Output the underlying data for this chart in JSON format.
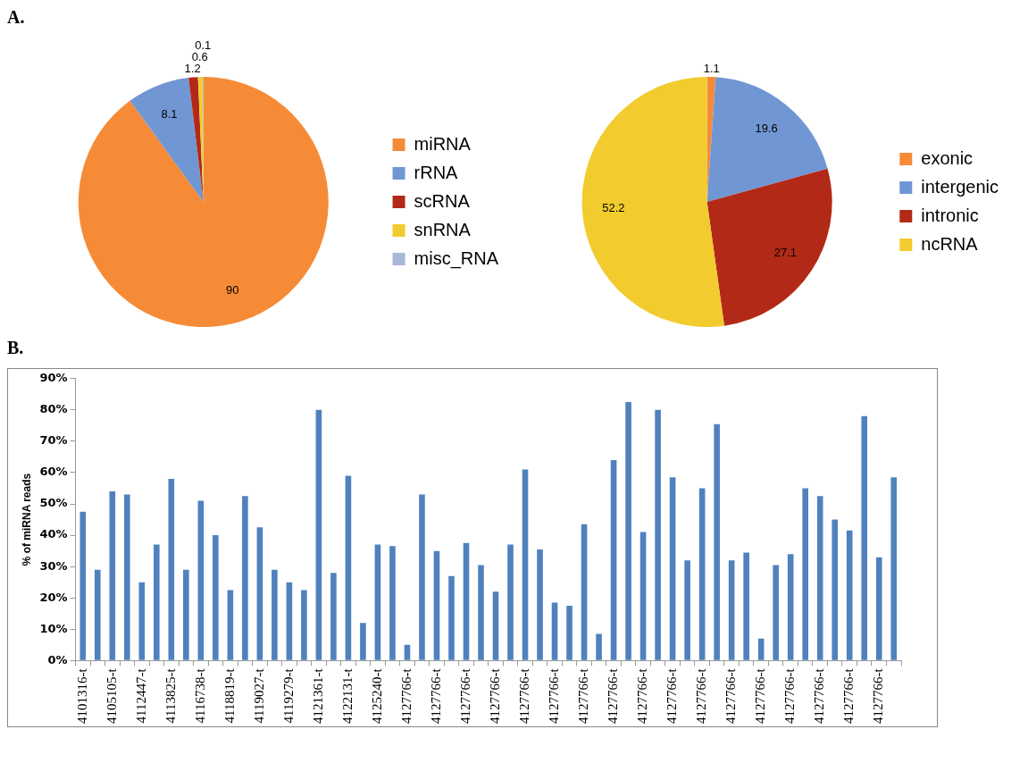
{
  "chart_data": [
    {
      "type": "pie",
      "categories": [
        "miRNA",
        "rRNA",
        "scRNA",
        "snRNA",
        "misc_RNA"
      ],
      "values": [
        90,
        8.1,
        1.2,
        0.6,
        0.1
      ],
      "colors": [
        "#f68b37",
        "#7196d4",
        "#b22a17",
        "#f2cb2e",
        "#a9b8d6"
      ],
      "data_labels": true,
      "legend": "right",
      "annotations": [
        "A."
      ]
    },
    {
      "type": "pie",
      "categories": [
        "exonic",
        "intergenic",
        "intronic",
        "ncRNA"
      ],
      "values": [
        1.1,
        19.6,
        27.1,
        52.2
      ],
      "colors": [
        "#f68b37",
        "#7196d4",
        "#b22a17",
        "#f2cb2e"
      ],
      "data_labels": true,
      "legend": "right"
    },
    {
      "type": "bar",
      "annotations": [
        "B."
      ],
      "ylabel": "% of miRNA reads",
      "color": "#4f81bd",
      "grid": false,
      "legend": false,
      "ylim": [
        0,
        90
      ],
      "yticks": [
        {
          "value": 0,
          "label": "0%"
        },
        {
          "value": 10,
          "label": "10%"
        },
        {
          "value": 20,
          "label": "20%"
        },
        {
          "value": 30,
          "label": "30%"
        },
        {
          "value": 40,
          "label": "40%"
        },
        {
          "value": 50,
          "label": "50%"
        },
        {
          "value": 60,
          "label": "60%"
        },
        {
          "value": 70,
          "label": "70%"
        },
        {
          "value": 80,
          "label": "80%"
        },
        {
          "value": 90,
          "label": "90%"
        }
      ],
      "categories": [
        "4101316-t",
        null,
        "4105105-t",
        null,
        "4112447-t",
        null,
        "4113825-t",
        null,
        "4116738-t",
        null,
        "4118819-t",
        null,
        "4119027-t",
        null,
        "4119279-t",
        null,
        "4121361-t",
        null,
        "4122131-t",
        null,
        "4125240-t",
        null,
        "4127766-t",
        null,
        "4127766-t",
        null,
        "4127766-t",
        null,
        "4127766-t",
        null,
        "4127766-t",
        null,
        "4127766-t",
        null,
        "4127766-t",
        null,
        "4127766-t",
        null,
        "4127766-t",
        null,
        "4127766-t",
        null,
        "4127766-t",
        null,
        "4127766-t",
        null,
        "4127766-t",
        null,
        "4127766-t",
        null,
        "4127766-t",
        null,
        "4127766-t",
        null,
        "4127766-t",
        null
      ],
      "values": [
        47.5,
        29,
        54,
        53,
        25,
        37,
        58,
        29,
        51,
        40,
        22.5,
        52.5,
        42.5,
        29,
        25,
        22.5,
        80,
        28,
        59,
        12,
        37,
        36.5,
        5,
        53,
        35,
        27,
        37.5,
        30.5,
        22,
        37,
        61,
        35.5,
        18.5,
        17.5,
        43.5,
        8.5,
        64,
        82.5,
        41,
        80,
        58.5,
        32,
        55,
        75.5,
        32,
        34.5,
        7,
        30.5,
        34,
        55,
        52.5,
        45,
        41.5,
        78,
        33,
        58.5
      ]
    }
  ]
}
